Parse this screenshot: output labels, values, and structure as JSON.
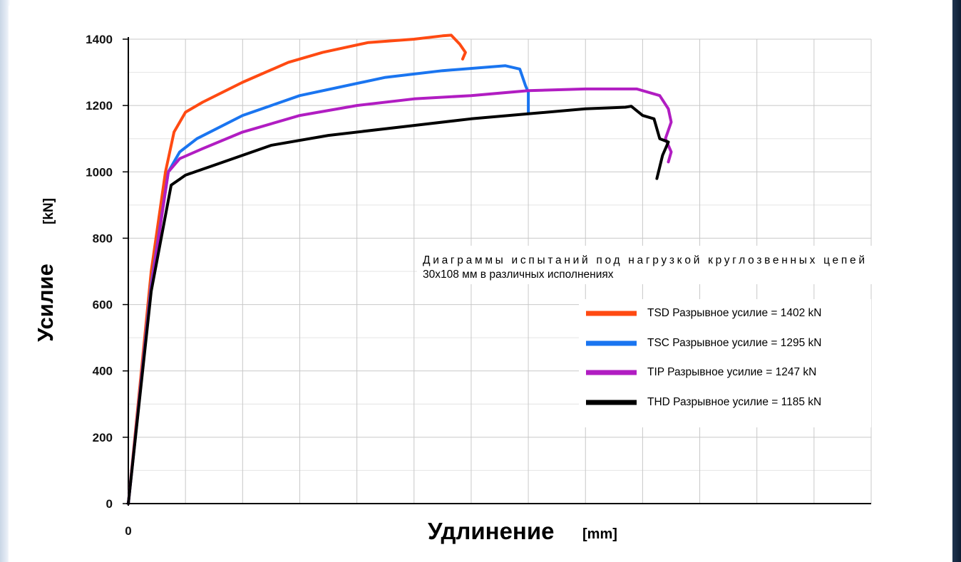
{
  "chart_data": {
    "type": "line",
    "title": "Диаграммы испытаний под нагрузкой круглозвенных цепей 30x108 мм в различных исполнениях",
    "title_lines": [
      "Диаграммы испытаний под нагрузкой круглозвенных цепей",
      "30x108 мм в различных исполнениях"
    ],
    "ylabel": "Усилие",
    "ylabel_unit": "[kN]",
    "xlabel": "Удлинение",
    "xlabel_unit": "[mm]",
    "ylim": [
      0,
      1400
    ],
    "xlim": [
      0,
      13
    ],
    "yticks": [
      "0",
      "200",
      "400",
      "600",
      "800",
      "1000",
      "1200",
      "1400"
    ],
    "xticks": [
      "0"
    ],
    "grid": true,
    "legend_position": "right",
    "series": [
      {
        "name": "TSD Разрывное усилие = 1402 kN",
        "color": "#ff4a12",
        "x": [
          0,
          0.4,
          0.65,
          0.8,
          1.0,
          1.3,
          2.0,
          2.8,
          3.4,
          4.2,
          5.0,
          5.5,
          5.65,
          5.8,
          5.9,
          5.85
        ],
        "y": [
          0,
          700,
          1000,
          1120,
          1180,
          1210,
          1270,
          1330,
          1360,
          1390,
          1400,
          1410,
          1412,
          1385,
          1360,
          1340
        ]
      },
      {
        "name": "TSC Разрывное усилие = 1295 kN",
        "color": "#1a75f0",
        "x": [
          0,
          0.4,
          0.7,
          0.9,
          1.2,
          2.0,
          3.0,
          4.5,
          5.5,
          6.6,
          6.85,
          6.95,
          7.0,
          7.0
        ],
        "y": [
          0,
          660,
          1000,
          1060,
          1100,
          1170,
          1230,
          1285,
          1305,
          1320,
          1310,
          1260,
          1240,
          1180
        ]
      },
      {
        "name": "TIP Разрывное усилие = 1247 kN",
        "color": "#b11dc2",
        "x": [
          0,
          0.4,
          0.7,
          0.9,
          1.3,
          2.0,
          3.0,
          4.0,
          5.0,
          6.0,
          7.0,
          8.0,
          8.9,
          9.3,
          9.45,
          9.5,
          9.4,
          9.5,
          9.45
        ],
        "y": [
          0,
          650,
          1000,
          1040,
          1070,
          1120,
          1170,
          1200,
          1220,
          1230,
          1245,
          1250,
          1250,
          1230,
          1190,
          1150,
          1100,
          1060,
          1030
        ]
      },
      {
        "name": "THD Разрывное усилие = 1185 kN",
        "color": "#000000",
        "x": [
          0,
          0.4,
          0.75,
          1.0,
          1.5,
          2.5,
          3.5,
          5.0,
          6.0,
          7.0,
          8.0,
          8.7,
          8.8,
          9.0,
          9.2,
          9.3,
          9.45,
          9.35,
          9.25
        ],
        "y": [
          0,
          640,
          960,
          990,
          1020,
          1080,
          1110,
          1140,
          1160,
          1175,
          1190,
          1195,
          1198,
          1170,
          1160,
          1100,
          1090,
          1050,
          980
        ]
      }
    ]
  }
}
